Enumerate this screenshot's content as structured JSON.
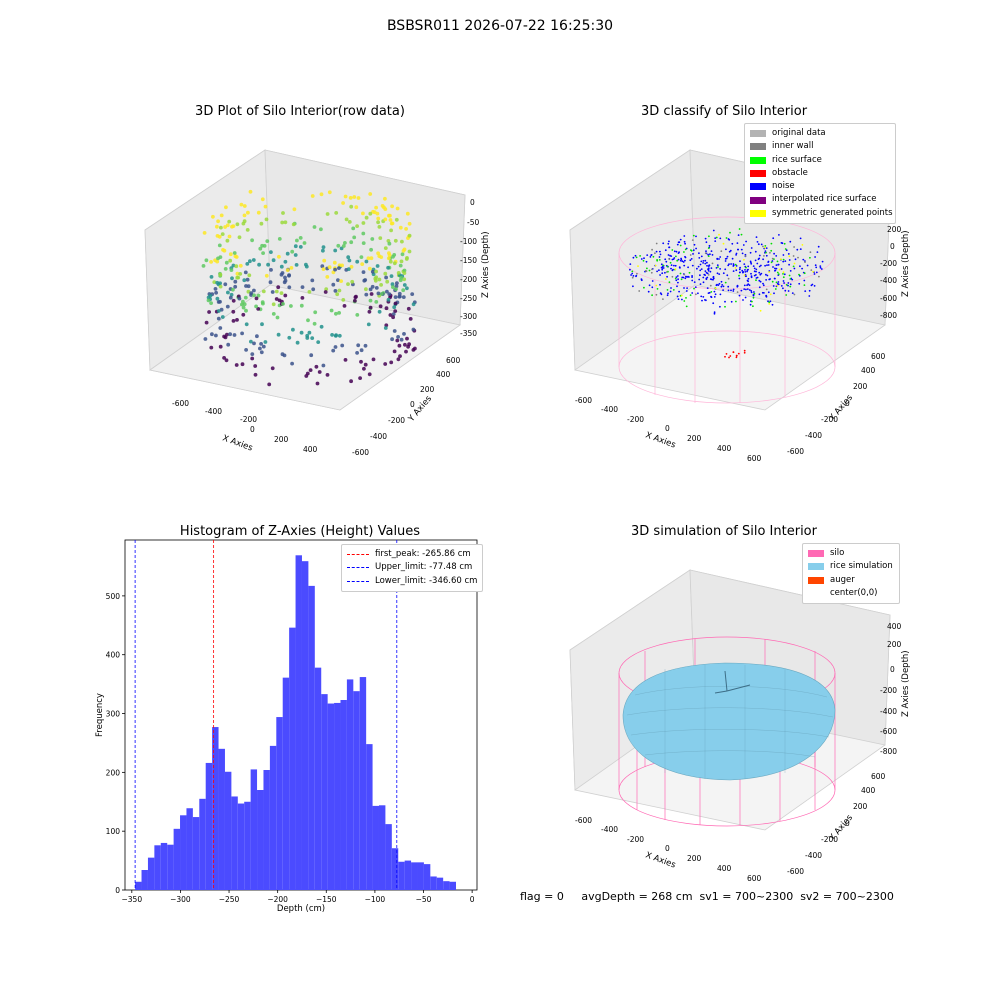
{
  "suptitle": "BSBSR011 2026-07-22 16:25:30",
  "footer": "flag = 0     avgDepth = 268 cm  sv1 = 700~2300  sv2 = 700~2300",
  "panels": {
    "raw": {
      "title": "3D Plot of Silo Interior(row data)",
      "xlabel": "X Axies",
      "ylabel": "Y Axies",
      "zlabel": "Z Axies (Depth)",
      "xticks": [
        "-600",
        "-400",
        "-200",
        "0",
        "200",
        "400"
      ],
      "yticks": [
        "-600",
        "-400",
        "-200",
        "0",
        "200",
        "400",
        "600"
      ],
      "zticks": [
        "0",
        "-50",
        "-100",
        "-150",
        "-200",
        "-250",
        "-300",
        "-350"
      ]
    },
    "classify": {
      "title": "3D classify of Silo Interior",
      "xlabel": "X Axies",
      "ylabel": "Y Axies",
      "zlabel": "Z Axies (Depth)",
      "xticks": [
        "-600",
        "-400",
        "-200",
        "0",
        "200",
        "400",
        "600"
      ],
      "yticks": [
        "-600",
        "-400",
        "-200",
        "0",
        "200",
        "400",
        "600"
      ],
      "zticks": [
        "200",
        "0",
        "-200",
        "-400",
        "-600",
        "-800"
      ],
      "legend": [
        {
          "label": "original data",
          "color": "#b3b3b3"
        },
        {
          "label": "inner wall",
          "color": "#808080"
        },
        {
          "label": "rice surface",
          "color": "#00ff00"
        },
        {
          "label": "obstacle",
          "color": "#ff0000"
        },
        {
          "label": "noise",
          "color": "#0000ff"
        },
        {
          "label": "interpolated rice surface",
          "color": "#800080"
        },
        {
          "label": "symmetric generated points",
          "color": "#ffff00"
        }
      ]
    },
    "simulation": {
      "title": "3D simulation of Silo Interior",
      "xlabel": "X Axies",
      "ylabel": "Y Axies",
      "zlabel": "Z Axies (Depth)",
      "xticks": [
        "-600",
        "-400",
        "-200",
        "0",
        "200",
        "400",
        "600"
      ],
      "yticks": [
        "-600",
        "-400",
        "-200",
        "0",
        "200",
        "400",
        "600"
      ],
      "zticks": [
        "400",
        "200",
        "0",
        "-200",
        "-400",
        "-600",
        "-800"
      ],
      "legend": [
        {
          "label": "silo",
          "color": "#ff69b4"
        },
        {
          "label": "rice simulation",
          "color": "#87ceeb"
        },
        {
          "label": "auger",
          "color": "#ff4500"
        },
        {
          "label": "center(0,0)",
          "color": "#ffffff"
        }
      ]
    }
  },
  "chart_data": {
    "type": "bar",
    "title": "Histogram of Z-Axies (Height) Values",
    "xlabel": "Depth (cm)",
    "ylabel": "Frequency",
    "xlim": [
      -357,
      5
    ],
    "ylim": [
      0,
      595
    ],
    "xticks": [
      -350,
      -300,
      -250,
      -200,
      -150,
      -100,
      -50,
      0
    ],
    "yticks": [
      0,
      100,
      200,
      300,
      400,
      500
    ],
    "bar_color": "#4b4bff",
    "bins": [
      {
        "x0": -346.6,
        "x1": -340.0,
        "count": 14
      },
      {
        "x0": -340.0,
        "x1": -333.4,
        "count": 34
      },
      {
        "x0": -333.4,
        "x1": -326.8,
        "count": 55
      },
      {
        "x0": -326.8,
        "x1": -320.2,
        "count": 76
      },
      {
        "x0": -320.2,
        "x1": -313.6,
        "count": 80
      },
      {
        "x0": -313.6,
        "x1": -307.0,
        "count": 77
      },
      {
        "x0": -307.0,
        "x1": -300.4,
        "count": 104
      },
      {
        "x0": -300.4,
        "x1": -293.8,
        "count": 127
      },
      {
        "x0": -293.8,
        "x1": -287.2,
        "count": 139
      },
      {
        "x0": -287.2,
        "x1": -280.6,
        "count": 124
      },
      {
        "x0": -280.6,
        "x1": -274.0,
        "count": 155
      },
      {
        "x0": -274.0,
        "x1": -267.4,
        "count": 216
      },
      {
        "x0": -267.4,
        "x1": -260.8,
        "count": 277
      },
      {
        "x0": -260.8,
        "x1": -254.2,
        "count": 240
      },
      {
        "x0": -254.2,
        "x1": -247.6,
        "count": 201
      },
      {
        "x0": -247.6,
        "x1": -241.0,
        "count": 159
      },
      {
        "x0": -241.0,
        "x1": -234.4,
        "count": 147
      },
      {
        "x0": -234.4,
        "x1": -227.8,
        "count": 150
      },
      {
        "x0": -227.8,
        "x1": -221.2,
        "count": 205
      },
      {
        "x0": -221.2,
        "x1": -214.6,
        "count": 170
      },
      {
        "x0": -214.6,
        "x1": -208.0,
        "count": 204
      },
      {
        "x0": -208.0,
        "x1": -201.4,
        "count": 245
      },
      {
        "x0": -201.4,
        "x1": -194.8,
        "count": 294
      },
      {
        "x0": -194.8,
        "x1": -188.2,
        "count": 361
      },
      {
        "x0": -188.2,
        "x1": -181.6,
        "count": 446
      },
      {
        "x0": -181.6,
        "x1": -175.0,
        "count": 569
      },
      {
        "x0": -175.0,
        "x1": -168.4,
        "count": 559
      },
      {
        "x0": -168.4,
        "x1": -161.8,
        "count": 517
      },
      {
        "x0": -161.8,
        "x1": -155.2,
        "count": 378
      },
      {
        "x0": -155.2,
        "x1": -148.6,
        "count": 333
      },
      {
        "x0": -148.6,
        "x1": -142.0,
        "count": 317
      },
      {
        "x0": -142.0,
        "x1": -135.4,
        "count": 318
      },
      {
        "x0": -135.4,
        "x1": -128.8,
        "count": 323
      },
      {
        "x0": -128.8,
        "x1": -122.2,
        "count": 358
      },
      {
        "x0": -122.2,
        "x1": -115.6,
        "count": 338
      },
      {
        "x0": -115.6,
        "x1": -109.0,
        "count": 362
      },
      {
        "x0": -109.0,
        "x1": -102.4,
        "count": 248
      },
      {
        "x0": -102.4,
        "x1": -95.8,
        "count": 143
      },
      {
        "x0": -95.8,
        "x1": -89.2,
        "count": 144
      },
      {
        "x0": -89.2,
        "x1": -82.6,
        "count": 112
      },
      {
        "x0": -82.6,
        "x1": -76.0,
        "count": 71
      },
      {
        "x0": -76.0,
        "x1": -69.4,
        "count": 48
      },
      {
        "x0": -69.4,
        "x1": -62.8,
        "count": 50
      },
      {
        "x0": -62.8,
        "x1": -56.2,
        "count": 47
      },
      {
        "x0": -56.2,
        "x1": -49.6,
        "count": 47
      },
      {
        "x0": -49.6,
        "x1": -43.0,
        "count": 44
      },
      {
        "x0": -43.0,
        "x1": -36.4,
        "count": 23
      },
      {
        "x0": -36.4,
        "x1": -29.8,
        "count": 21
      },
      {
        "x0": -29.8,
        "x1": -23.2,
        "count": 15
      },
      {
        "x0": -23.2,
        "x1": -16.6,
        "count": 14
      }
    ],
    "reference_lines": [
      {
        "label": "first_peak: -265.86 cm",
        "x": -265.86,
        "color": "#ff0000"
      },
      {
        "label": "Upper_limit: -77.48 cm",
        "x": -77.48,
        "color": "#0000ff"
      },
      {
        "label": "Lower_limit: -346.60 cm",
        "x": -346.6,
        "color": "#0000ff"
      }
    ]
  }
}
